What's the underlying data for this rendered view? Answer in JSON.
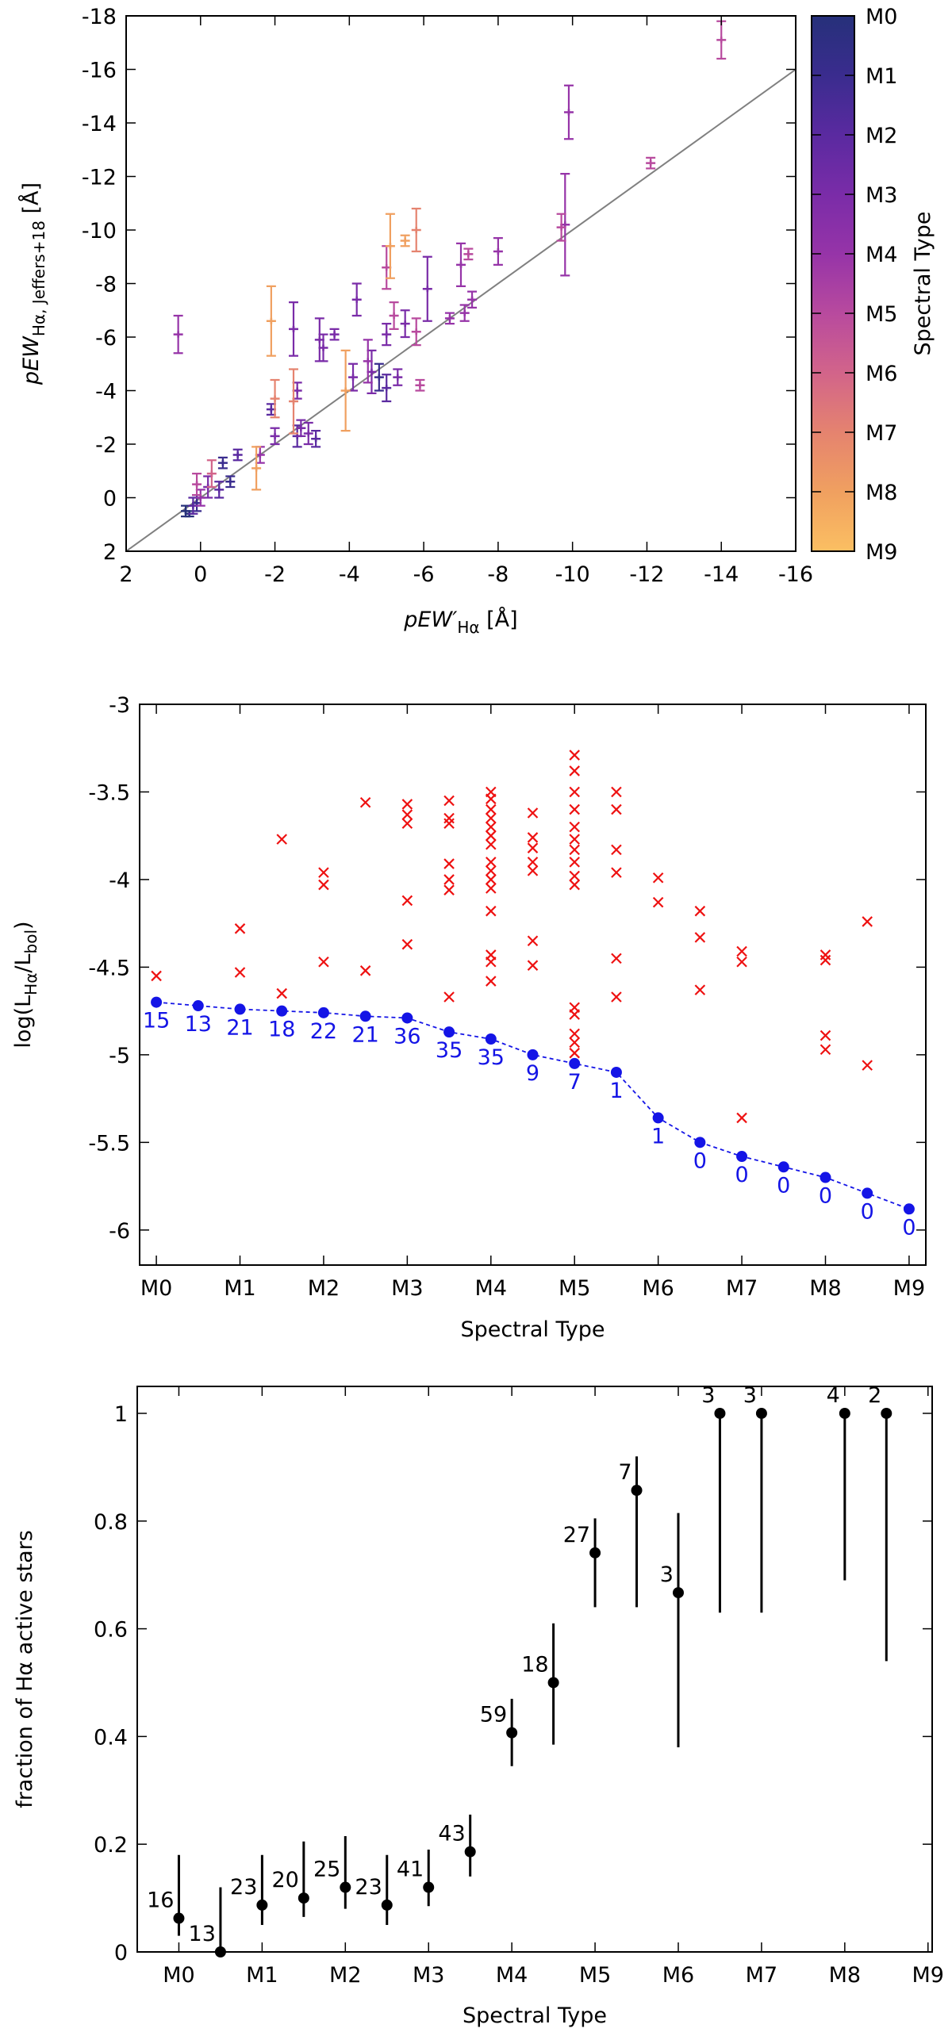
{
  "chart_data": [
    {
      "type": "scatter",
      "xlabel": [
        {
          "text": "pEW′",
          "italic": true
        },
        {
          "text": "Hα",
          "sub": true
        },
        {
          "text": " [Å]"
        }
      ],
      "ylabel": [
        {
          "text": "pEW",
          "italic": true
        },
        {
          "text": "Hα, Jeffers+18",
          "sub": true
        },
        {
          "text": " [Å]"
        }
      ],
      "xlim": [
        2,
        -16
      ],
      "ylim": [
        2,
        -18
      ],
      "xticks": [
        2,
        0,
        -2,
        -4,
        -6,
        -8,
        -10,
        -12,
        -14,
        -16
      ],
      "yticks": [
        2,
        0,
        -2,
        -4,
        -6,
        -8,
        -10,
        -12,
        -14,
        -16,
        -18
      ],
      "identity_line": {
        "color": "#808080"
      },
      "colorbar": {
        "label": "Spectral Type",
        "lim": [
          0,
          9
        ],
        "ticks": [
          {
            "value": 0,
            "label": "M0"
          },
          {
            "value": 1,
            "label": "M1"
          },
          {
            "value": 2,
            "label": "M2"
          },
          {
            "value": 3,
            "label": "M3"
          },
          {
            "value": 4,
            "label": "M4"
          },
          {
            "value": 5,
            "label": "M5"
          },
          {
            "value": 6,
            "label": "M6"
          },
          {
            "value": 7,
            "label": "M7"
          },
          {
            "value": 8,
            "label": "M8"
          },
          {
            "value": 9,
            "label": "M9"
          }
        ],
        "colors": [
          "#26307a",
          "#3a2c8e",
          "#5a2aa0",
          "#7a2ca8",
          "#9634a8",
          "#b84a9e",
          "#d2648a",
          "#e5836f",
          "#f0a060",
          "#fbbf62"
        ]
      },
      "series": [
        {
          "color": "#26307a",
          "marker": "plus",
          "x": [
            0.4,
            0.3
          ],
          "y": [
            0.5,
            0.6
          ],
          "yerr": [
            0.2,
            0.1
          ]
        },
        {
          "color": "#3a2c8e",
          "marker": "plus",
          "x": [
            -4.8,
            -0.6,
            0.1,
            -0.8
          ],
          "y": [
            -4.5,
            -1.3,
            0.2,
            -0.6
          ],
          "yerr": [
            0.5,
            0.2,
            0.3,
            0.2
          ]
        },
        {
          "color": "#5a2aa0",
          "marker": "plus",
          "x": [
            -5.0,
            -1.9,
            -3.1,
            -2.6,
            -1.0,
            0.2,
            -0.5
          ],
          "y": [
            -4.1,
            -3.3,
            -2.2,
            -2.3,
            -1.6,
            0.3,
            -0.3
          ],
          "yerr": [
            0.5,
            0.2,
            0.3,
            0.4,
            0.2,
            0.3,
            0.3
          ]
        },
        {
          "color": "#7a2ca8",
          "marker": "plus",
          "x": [
            -5,
            -6.1,
            -5.5,
            -4.2,
            -4.1,
            -3.6,
            -3.2,
            -3.3,
            -2.5,
            -2.6,
            -5.3,
            -4.6,
            -2.9,
            -2.7,
            -2.0,
            -0.2
          ],
          "y": [
            -6.1,
            -7.8,
            -6.5,
            -7.4,
            -4.5,
            -6.1,
            -5.9,
            -5.6,
            -6.3,
            -4.0,
            -4.5,
            -4.7,
            -2.4,
            -2.6,
            -2.3,
            -0.4
          ],
          "yerr": [
            0.4,
            1.2,
            0.5,
            0.6,
            0.5,
            0.2,
            0.8,
            0.5,
            1.0,
            0.3,
            0.3,
            0.8,
            0.4,
            0.3,
            0.3,
            0.4
          ]
        },
        {
          "color": "#9634a8",
          "marker": "plus",
          "x": [
            -9.9,
            -9.8,
            -8,
            -7,
            -7.3,
            -7.1,
            -6.7,
            -4.5,
            -1.6,
            0.6,
            0
          ],
          "y": [
            -14.4,
            -10.2,
            -9.2,
            -8.7,
            -7.4,
            -6.9,
            -6.7,
            -5.1,
            -1.6,
            -6.1,
            0
          ],
          "yerr": [
            1.0,
            1.9,
            0.5,
            0.8,
            0.3,
            0.3,
            0.2,
            0.8,
            0.3,
            0.7,
            0.3
          ]
        },
        {
          "color": "#b84a9e",
          "marker": "plus",
          "x": [
            -14,
            -12.1,
            -9.7,
            -7.2,
            -5,
            -5.2,
            -5.8,
            -5.9,
            0.1
          ],
          "y": [
            -17.1,
            -12.5,
            -10.1,
            -9.1,
            -8.6,
            -6.8,
            -6.2,
            -4.2,
            -0.5
          ],
          "yerr": [
            0.7,
            0.2,
            0.5,
            0.2,
            0.8,
            0.5,
            0.5,
            0.2,
            0.4
          ]
        },
        {
          "color": "#d2648a",
          "marker": "plus",
          "x": [
            -0.3
          ],
          "y": [
            -0.9
          ],
          "yerr": [
            0.5
          ]
        },
        {
          "color": "#e5836f",
          "marker": "plus",
          "x": [
            -5.8,
            -2.5,
            -2.0
          ],
          "y": [
            -10,
            -3.6,
            -3.7
          ],
          "yerr": [
            0.8,
            1.2,
            0.7
          ]
        },
        {
          "color": "#f0a060",
          "marker": "plus",
          "x": [
            -5.1,
            -5.5,
            -3.9,
            -1.9,
            -1.5
          ],
          "y": [
            -9.4,
            -9.6,
            -4.0,
            -6.6,
            -1.1
          ],
          "yerr": [
            1.2,
            0.2,
            1.5,
            1.3,
            0.8
          ]
        }
      ]
    },
    {
      "type": "scatter",
      "xlabel": [
        {
          "text": "Spectral Type"
        }
      ],
      "ylabel": [
        {
          "text": "log(L"
        },
        {
          "text": "Hα",
          "sub": true
        },
        {
          "text": "/L"
        },
        {
          "text": "bol",
          "sub": true
        },
        {
          "text": ")"
        }
      ],
      "xlim": [
        -0.2,
        9.2
      ],
      "ylim": [
        -6.2,
        -3
      ],
      "xticks": [
        {
          "value": 0,
          "label": "M0"
        },
        {
          "value": 1,
          "label": "M1"
        },
        {
          "value": 2,
          "label": "M2"
        },
        {
          "value": 3,
          "label": "M3"
        },
        {
          "value": 4,
          "label": "M4"
        },
        {
          "value": 5,
          "label": "M5"
        },
        {
          "value": 6,
          "label": "M6"
        },
        {
          "value": 7,
          "label": "M7"
        },
        {
          "value": 8,
          "label": "M8"
        },
        {
          "value": 9,
          "label": "M9"
        }
      ],
      "yticks": [
        -3,
        -3.5,
        -4,
        -4.5,
        -5,
        -5.5,
        -6
      ],
      "series": [
        {
          "color": "#ee1111",
          "marker": "x",
          "x": [
            0,
            1,
            1,
            1.5,
            1.5,
            2,
            2,
            2,
            2.5,
            2.5,
            3,
            3,
            3,
            3,
            3,
            3.5,
            3.5,
            3.5,
            3.5,
            3.5,
            3.5,
            3.5,
            4,
            4,
            4,
            4,
            4,
            4,
            4,
            4,
            4,
            4,
            4,
            4,
            4,
            4,
            4,
            4.5,
            4.5,
            4.5,
            4.5,
            4.5,
            4.5,
            4.5,
            5,
            5,
            5,
            5,
            5,
            5,
            5,
            5,
            5,
            5,
            5,
            5,
            5,
            5,
            5,
            5.5,
            5.5,
            5.5,
            5.5,
            5.5,
            5.5,
            6,
            6,
            6.5,
            6.5,
            6.5,
            7,
            7,
            7,
            8,
            8,
            8,
            8,
            8.5,
            8.5
          ],
          "y": [
            -4.55,
            -4.28,
            -4.53,
            -3.77,
            -4.65,
            -3.96,
            -4.03,
            -4.47,
            -3.56,
            -4.52,
            -3.57,
            -3.63,
            -3.68,
            -4.12,
            -4.37,
            -3.55,
            -3.65,
            -3.68,
            -3.91,
            -4.0,
            -4.06,
            -4.67,
            -3.5,
            -3.54,
            -3.6,
            -3.65,
            -3.7,
            -3.75,
            -3.8,
            -3.9,
            -3.95,
            -4.0,
            -4.05,
            -4.18,
            -4.43,
            -4.47,
            -4.58,
            -3.62,
            -3.76,
            -3.82,
            -3.9,
            -3.95,
            -4.35,
            -4.49,
            -3.29,
            -3.38,
            -3.5,
            -3.6,
            -3.7,
            -3.77,
            -3.83,
            -3.9,
            -3.98,
            -4.03,
            -4.73,
            -4.77,
            -4.88,
            -4.93,
            -4.99,
            -3.5,
            -3.6,
            -3.83,
            -3.96,
            -4.45,
            -4.67,
            -3.99,
            -4.13,
            -4.18,
            -4.33,
            -4.63,
            -4.41,
            -4.47,
            -5.36,
            -4.43,
            -4.46,
            -4.89,
            -4.97,
            -4.24,
            -5.06
          ]
        },
        {
          "color": "#1414e6",
          "marker": "circle",
          "line": "dashed",
          "label_position": "below",
          "x": [
            0,
            0.5,
            1,
            1.5,
            2,
            2.5,
            3,
            3.5,
            4,
            4.5,
            5,
            5.5,
            6,
            6.5,
            7,
            7.5,
            8,
            8.5,
            9
          ],
          "y": [
            -4.7,
            -4.72,
            -4.74,
            -4.75,
            -4.76,
            -4.78,
            -4.79,
            -4.87,
            -4.91,
            -5.0,
            -5.05,
            -5.1,
            -5.36,
            -5.5,
            -5.58,
            -5.64,
            -5.7,
            -5.79,
            -5.88
          ],
          "labels": [
            "15",
            "13",
            "21",
            "18",
            "22",
            "21",
            "36",
            "35",
            "35",
            "9",
            "7",
            "1",
            "1",
            "0",
            "0",
            "0",
            "0",
            "0",
            "0"
          ]
        }
      ]
    },
    {
      "type": "scatter",
      "xlabel": [
        {
          "text": "Spectral Type"
        }
      ],
      "ylabel": [
        {
          "text": "fraction of Hα active stars"
        }
      ],
      "xlim": [
        -0.5,
        9.05
      ],
      "ylim": [
        0,
        1.05
      ],
      "xticks": [
        {
          "value": 0,
          "label": "M0"
        },
        {
          "value": 1,
          "label": "M1"
        },
        {
          "value": 2,
          "label": "M2"
        },
        {
          "value": 3,
          "label": "M3"
        },
        {
          "value": 4,
          "label": "M4"
        },
        {
          "value": 5,
          "label": "M5"
        },
        {
          "value": 6,
          "label": "M6"
        },
        {
          "value": 7,
          "label": "M7"
        },
        {
          "value": 8,
          "label": "M8"
        },
        {
          "value": 9,
          "label": "M9"
        }
      ],
      "yticks": [
        0,
        0.2,
        0.4,
        0.6,
        0.8,
        1
      ],
      "series": [
        {
          "color": "#000000",
          "marker": "circle",
          "label_position": "upper-left",
          "x": [
            0,
            0.5,
            1,
            1.5,
            2,
            2.5,
            3,
            3.5,
            4,
            4.5,
            5,
            5.5,
            6,
            6.5,
            7,
            8,
            8.5
          ],
          "y": [
            0.0625,
            0,
            0.087,
            0.1,
            0.12,
            0.087,
            0.12,
            0.186,
            0.407,
            0.5,
            0.741,
            0.857,
            0.667,
            1,
            1,
            1,
            1
          ],
          "lower": [
            0.03,
            0,
            0.05,
            0.065,
            0.08,
            0.05,
            0.085,
            0.14,
            0.345,
            0.385,
            0.64,
            0.64,
            0.38,
            0.63,
            0.63,
            0.69,
            0.54
          ],
          "upper": [
            0.18,
            0.12,
            0.18,
            0.205,
            0.215,
            0.18,
            0.19,
            0.255,
            0.47,
            0.61,
            0.805,
            0.92,
            0.815,
            1,
            1,
            1,
            1
          ],
          "labels": [
            "16",
            "13",
            "23",
            "20",
            "25",
            "23",
            "41",
            "43",
            "59",
            "18",
            "27",
            "7",
            "3",
            "3",
            "3",
            "4",
            "2"
          ]
        }
      ]
    }
  ]
}
